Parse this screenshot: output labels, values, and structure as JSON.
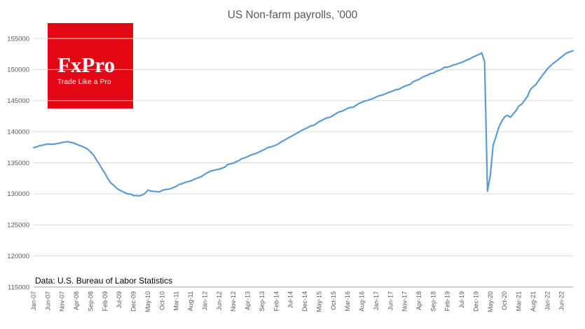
{
  "title": "US Non-farm payrolls, '000",
  "footer": "Data: U.S. Bureau of Labor Statistics",
  "logo": {
    "brand": "FxPro",
    "tagline": "Trade Like a Pro",
    "bg_color": "#e30613",
    "text_color": "#ffffff"
  },
  "chart_data": {
    "type": "line",
    "title": "US Non-farm payrolls, '000",
    "series_name": "US Non-farm payrolls ('000)",
    "x_tick_labels": [
      "Jan-07",
      "Jun-07",
      "Nov-07",
      "Apr-08",
      "Sep-08",
      "Feb-09",
      "Jul-09",
      "Dec-09",
      "May-10",
      "Oct-10",
      "Mar-11",
      "Aug-11",
      "Jan-12",
      "Jun-12",
      "Nov-12",
      "Apr-13",
      "Sep-13",
      "Feb-14",
      "Jul-14",
      "Dec-14",
      "May-15",
      "Oct-15",
      "Mar-16",
      "Aug-16",
      "Jan-17",
      "Jun-17",
      "Nov-17",
      "Apr-18",
      "Sep-18",
      "Feb-19",
      "Jul-19",
      "Dec-19",
      "May-20",
      "Oct-20",
      "Mar-21",
      "Aug-21",
      "Jan-22",
      "Jun-22"
    ],
    "label_interval": 5,
    "values": [
      137448,
      137533,
      137724,
      137802,
      137946,
      138019,
      137985,
      137981,
      138063,
      138145,
      138261,
      138350,
      138365,
      138279,
      138199,
      137985,
      137803,
      137631,
      137421,
      137162,
      136714,
      136241,
      135475,
      134774,
      133976,
      133275,
      132449,
      131765,
      131411,
      130944,
      130617,
      130401,
      130174,
      129976,
      129970,
      129700,
      129727,
      129655,
      129811,
      130062,
      130578,
      130456,
      130395,
      130353,
      130296,
      130537,
      130675,
      130746,
      130815,
      131007,
      131219,
      131517,
      131619,
      131836,
      131942,
      132064,
      132285,
      132480,
      132641,
      132837,
      133172,
      133427,
      133670,
      133766,
      133879,
      133967,
      134127,
      134292,
      134719,
      134813,
      134936,
      135178,
      135376,
      135665,
      135802,
      135991,
      136209,
      136381,
      136497,
      136749,
      136937,
      137161,
      137436,
      137520,
      137696,
      137864,
      138122,
      138432,
      138663,
      138953,
      139190,
      139434,
      139694,
      139942,
      140235,
      140441,
      140645,
      140911,
      140997,
      141271,
      141629,
      141813,
      142092,
      142245,
      142345,
      142644,
      142926,
      143192,
      143285,
      143532,
      143755,
      143916,
      143940,
      144250,
      144548,
      144724,
      144936,
      145044,
      145208,
      145362,
      145584,
      145778,
      145861,
      146055,
      146240,
      146401,
      146589,
      146778,
      146826,
      147096,
      147311,
      147486,
      147639,
      148063,
      148238,
      148419,
      148709,
      148936,
      149075,
      149347,
      149430,
      149707,
      149846,
      150073,
      150379,
      150383,
      150530,
      150746,
      150831,
      151012,
      151160,
      151368,
      151576,
      151771,
      152032,
      152216,
      152430,
      152682,
      151268,
      130421,
      133028,
      137823,
      139240,
      140747,
      141683,
      142364,
      142629,
      142322,
      142843,
      143378,
      144154,
      144424,
      145038,
      145654,
      146751,
      147239,
      147596,
      148273,
      148921,
      149509,
      150106,
      150574,
      150978,
      151314,
      151682,
      152048,
      152426,
      152712,
      152875,
      153028
    ],
    "ylim": [
      115000,
      155000
    ],
    "y_tick_step": 5000,
    "grid": true,
    "legend": "none",
    "line_color": "#5b9bd5",
    "grid_color": "#d9d9d9",
    "axis_line_color": "#a6a6a6",
    "axis_text_color": "#595959"
  }
}
